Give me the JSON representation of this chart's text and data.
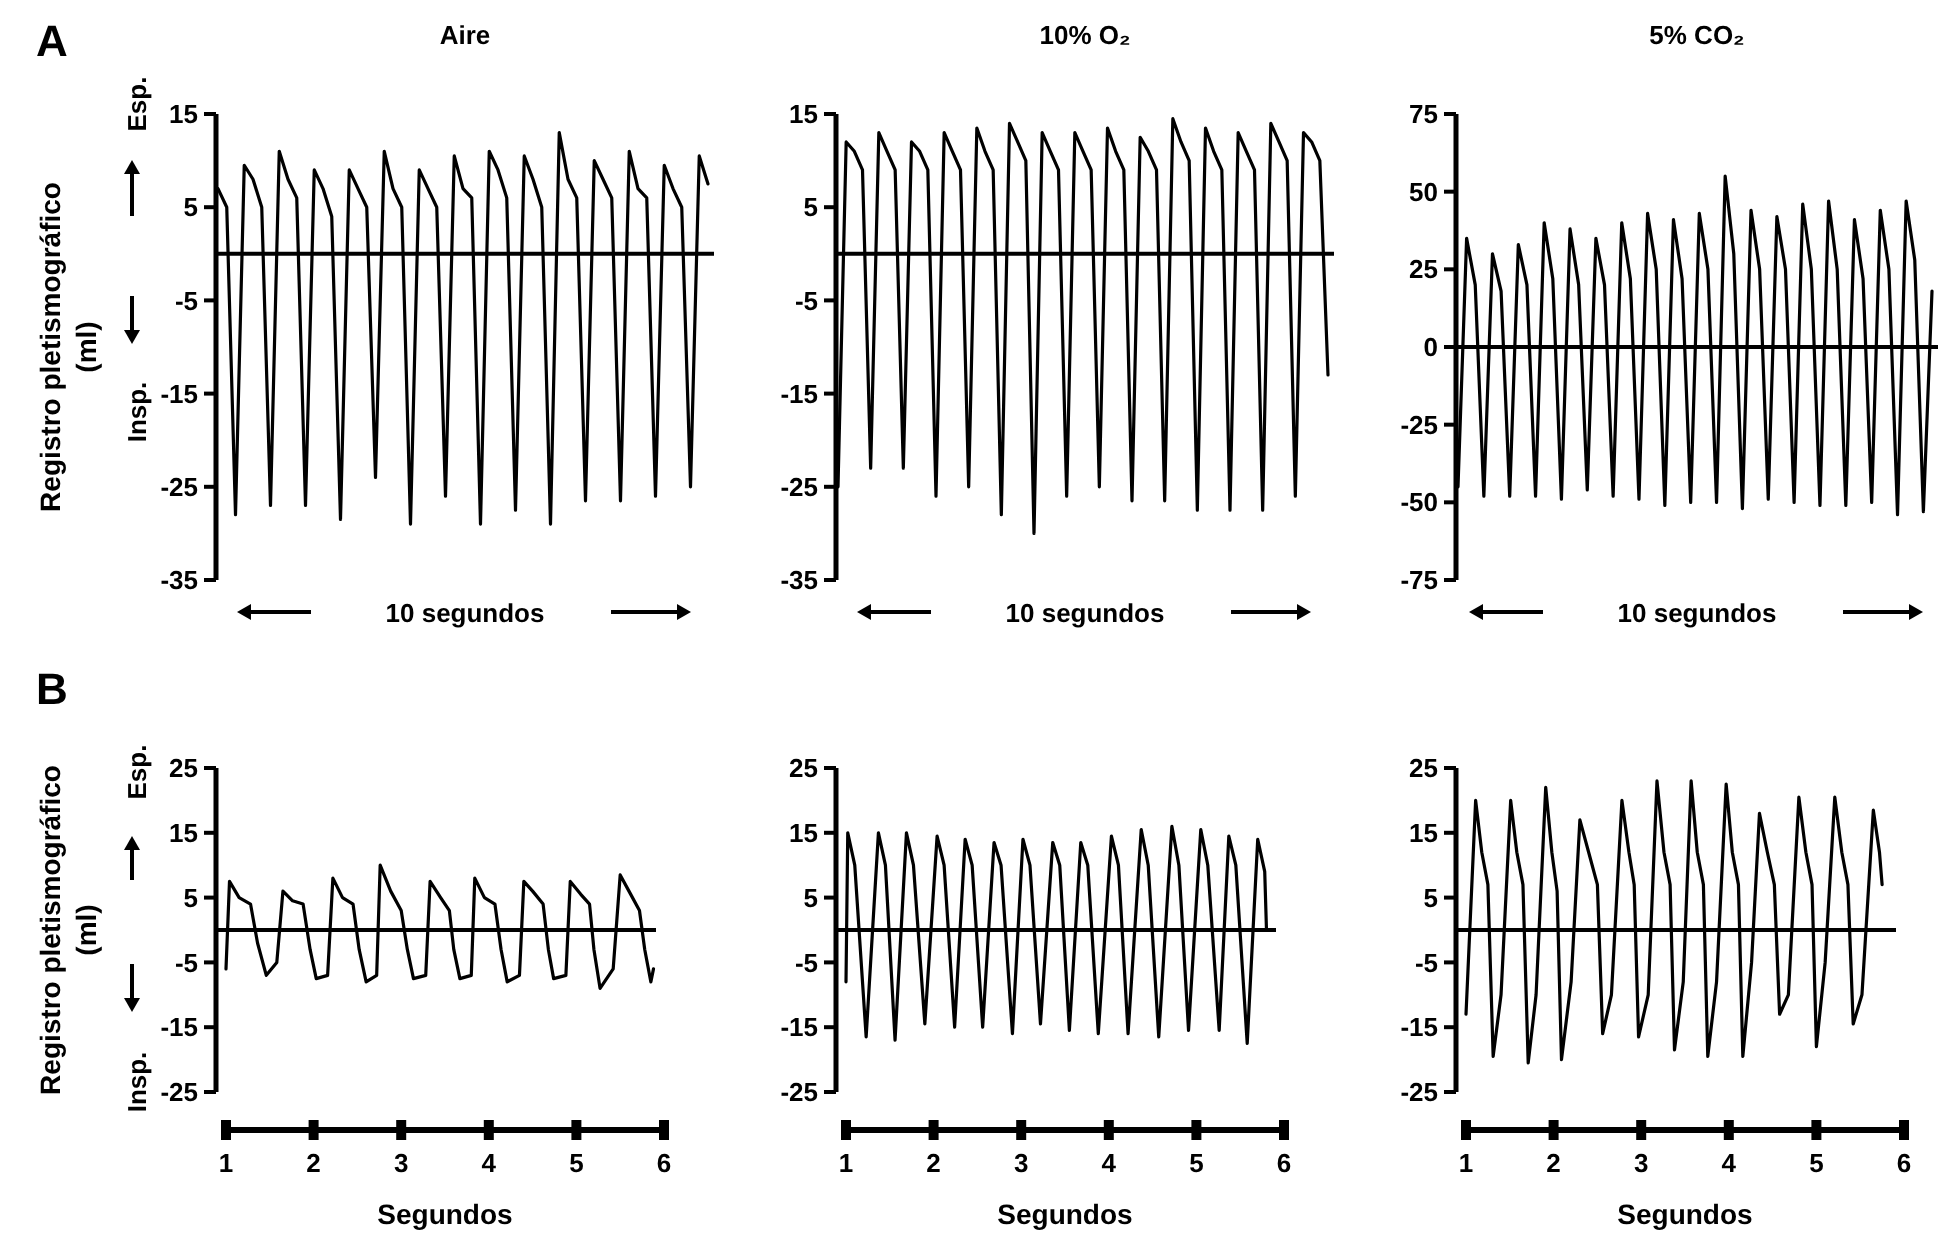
{
  "chart_data": [
    {
      "type": "line",
      "title": "Aire",
      "ylabel": "Registro pletismográfico (ml)",
      "annotations": [
        "A",
        "Esp.",
        "Insp.",
        "10 segundos"
      ],
      "tick_labels": "y",
      "color": "#000000",
      "ylim": [
        -35,
        15
      ],
      "yticks": [
        15,
        5,
        -5,
        -15,
        -25,
        -35
      ],
      "ref_lines": [
        {
          "axis": "y",
          "value": 0,
          "color": "#000000"
        }
      ],
      "categories": [
        null,
        null,
        null,
        null,
        null,
        null,
        null,
        null,
        null,
        null,
        null,
        null,
        null,
        null,
        null,
        null,
        null,
        null,
        null,
        null,
        null,
        null,
        null,
        null,
        null,
        null,
        null,
        null,
        null,
        null,
        null,
        null,
        null,
        null,
        null,
        null,
        null,
        null,
        null,
        null,
        null,
        null,
        null,
        null,
        null,
        null,
        null,
        null,
        null,
        null,
        null,
        null,
        null,
        null,
        null,
        null,
        null
      ],
      "values": [
        7,
        5,
        -28,
        9.5,
        8,
        5,
        -27,
        11,
        8,
        6,
        -27,
        9,
        7,
        4,
        -28.5,
        9,
        7,
        5,
        -24,
        11,
        7,
        5,
        -29,
        9,
        7,
        5,
        -26,
        10.5,
        7,
        6,
        -29,
        11,
        9,
        6,
        -27.5,
        10.5,
        8,
        5,
        -29,
        13,
        8,
        6,
        -26.5,
        10,
        8,
        6,
        -26.5,
        11,
        7,
        6,
        -26,
        9.5,
        7,
        5,
        -25,
        10.5,
        7.5
      ]
    },
    {
      "type": "line",
      "title": "10% O₂",
      "annotations": [
        "10 segundos"
      ],
      "tick_labels": "y",
      "color": "#000000",
      "ylim": [
        -35,
        15
      ],
      "yticks": [
        15,
        5,
        -5,
        -15,
        -25,
        -35
      ],
      "ref_lines": [
        {
          "axis": "y",
          "value": 0,
          "color": "#000000"
        }
      ],
      "categories": [
        null,
        null,
        null,
        null,
        null,
        null,
        null,
        null,
        null,
        null,
        null,
        null,
        null,
        null,
        null,
        null,
        null,
        null,
        null,
        null,
        null,
        null,
        null,
        null,
        null,
        null,
        null,
        null,
        null,
        null,
        null,
        null,
        null,
        null,
        null,
        null,
        null,
        null,
        null,
        null,
        null,
        null,
        null,
        null,
        null,
        null,
        null,
        null,
        null,
        null,
        null,
        null,
        null,
        null,
        null,
        null,
        null,
        null,
        null,
        null,
        null
      ],
      "values": [
        -25,
        12,
        11,
        9,
        -23,
        13,
        11,
        9,
        -23,
        12,
        11,
        9,
        -26,
        13,
        11,
        9,
        -25,
        13.5,
        11,
        9,
        -28,
        14,
        12,
        10,
        -30,
        13,
        11,
        9,
        -26,
        13,
        11,
        9,
        -25,
        13.5,
        11,
        9,
        -26.5,
        12.5,
        11,
        9,
        -26.5,
        14.5,
        12,
        10,
        -27.5,
        13.5,
        11,
        9,
        -27.5,
        13,
        11,
        9,
        -27.5,
        14,
        12,
        10,
        -26,
        13,
        12,
        10,
        -13
      ]
    },
    {
      "type": "line",
      "title": "5% CO₂",
      "annotations": [
        "10 segundos"
      ],
      "tick_labels": "y",
      "color": "#000000",
      "ylim": [
        -75,
        75
      ],
      "yticks": [
        75,
        50,
        25,
        0,
        -25,
        -50,
        -75
      ],
      "ref_lines": [
        {
          "axis": "y",
          "value": 0,
          "color": "#000000"
        }
      ],
      "categories": [
        null,
        null,
        null,
        null,
        null,
        null,
        null,
        null,
        null,
        null,
        null,
        null,
        null,
        null,
        null,
        null,
        null,
        null,
        null,
        null,
        null,
        null,
        null,
        null,
        null,
        null,
        null,
        null,
        null,
        null,
        null,
        null,
        null,
        null,
        null,
        null,
        null,
        null,
        null,
        null,
        null,
        null,
        null,
        null,
        null,
        null,
        null,
        null,
        null,
        null,
        null,
        null,
        null,
        null,
        null,
        null
      ],
      "values": [
        -45,
        35,
        20,
        -48,
        30,
        18,
        -48,
        33,
        20,
        -48,
        40,
        22,
        -49,
        38,
        20,
        -46,
        35,
        20,
        -48,
        40,
        22,
        -49,
        43,
        25,
        -51,
        41,
        22,
        -50,
        43,
        25,
        -50,
        55,
        30,
        -52,
        44,
        25,
        -49,
        42,
        25,
        -50,
        46,
        25,
        -51,
        47,
        25,
        -51,
        41,
        22,
        -50,
        44,
        25,
        -54,
        47,
        28,
        -53,
        18
      ]
    },
    {
      "type": "line",
      "ylabel": "Registro pletismográfico (ml)",
      "xlabel": "Segundos",
      "annotations": [
        "B",
        "Esp.",
        "Insp."
      ],
      "color": "#000000",
      "xlim": [
        1,
        6
      ],
      "xticks": [
        1,
        2,
        3,
        4,
        5,
        6
      ],
      "ylim": [
        -25,
        25
      ],
      "yticks": [
        25,
        15,
        5,
        -5,
        -15,
        -25
      ],
      "ref_lines": [
        {
          "axis": "y",
          "value": 0,
          "color": "#000000"
        }
      ],
      "x": [
        1.0,
        1.04,
        1.15,
        1.28,
        1.36,
        1.46,
        1.58,
        1.65,
        1.76,
        1.88,
        1.96,
        2.03,
        2.16,
        2.22,
        2.33,
        2.45,
        2.52,
        2.6,
        2.72,
        2.76,
        2.88,
        3.0,
        3.07,
        3.14,
        3.28,
        3.33,
        3.45,
        3.55,
        3.6,
        3.67,
        3.8,
        3.84,
        3.95,
        4.07,
        4.14,
        4.21,
        4.35,
        4.4,
        4.5,
        4.62,
        4.68,
        4.74,
        4.88,
        4.93,
        5.05,
        5.15,
        5.2,
        5.27,
        5.42,
        5.5,
        5.6,
        5.72,
        5.78,
        5.85,
        5.88
      ],
      "values": [
        -6,
        7.5,
        5,
        4,
        -2,
        -7,
        -5,
        6,
        4.5,
        4,
        -3,
        -7.5,
        -7,
        8,
        5,
        4,
        -3,
        -8,
        -7,
        10,
        6,
        3,
        -3,
        -7.5,
        -7,
        7.5,
        5,
        3,
        -3,
        -7.5,
        -7,
        8,
        5,
        4,
        -3,
        -8,
        -7,
        7.5,
        6,
        4,
        -3,
        -7.5,
        -7,
        7.5,
        5.5,
        4,
        -3,
        -9,
        -6,
        8.5,
        6,
        3,
        -3,
        -8,
        -6
      ]
    },
    {
      "type": "line",
      "xlabel": "Segundos",
      "color": "#000000",
      "xlim": [
        1,
        6
      ],
      "xticks": [
        1,
        2,
        3,
        4,
        5,
        6
      ],
      "ylim": [
        -25,
        25
      ],
      "yticks": [
        25,
        15,
        5,
        -5,
        -15,
        -25
      ],
      "ref_lines": [
        {
          "axis": "y",
          "value": 0,
          "color": "#000000"
        }
      ],
      "x": [
        1.0,
        1.02,
        1.1,
        1.23,
        1.37,
        1.45,
        1.56,
        1.69,
        1.77,
        1.9,
        2.04,
        2.12,
        2.24,
        2.36,
        2.44,
        2.56,
        2.69,
        2.77,
        2.9,
        3.02,
        3.1,
        3.22,
        3.36,
        3.44,
        3.55,
        3.68,
        3.76,
        3.88,
        4.03,
        4.11,
        4.22,
        4.37,
        4.45,
        4.57,
        4.72,
        4.8,
        4.91,
        5.05,
        5.13,
        5.26,
        5.37,
        5.45,
        5.58,
        5.7,
        5.78,
        5.8
      ],
      "values": [
        -8,
        15,
        10,
        -16.5,
        15,
        10,
        -17,
        15,
        10,
        -14.5,
        14.5,
        10,
        -15,
        14,
        10,
        -15,
        13.5,
        10,
        -16,
        14,
        10,
        -14.5,
        13.5,
        10,
        -15.5,
        13.5,
        10,
        -16,
        14.5,
        10,
        -16,
        15.5,
        10,
        -16.5,
        16,
        10,
        -15.5,
        15.5,
        10,
        -15.5,
        14.5,
        10,
        -17.5,
        14,
        9,
        0
      ]
    },
    {
      "type": "line",
      "xlabel": "Segundos",
      "color": "#000000",
      "xlim": [
        1,
        6
      ],
      "xticks": [
        1,
        2,
        3,
        4,
        5,
        6
      ],
      "ylim": [
        -25,
        25
      ],
      "yticks": [
        25,
        15,
        5,
        -5,
        -15,
        -25
      ],
      "ref_lines": [
        {
          "axis": "y",
          "value": 0,
          "color": "#000000"
        }
      ],
      "x": [
        1.0,
        1.11,
        1.18,
        1.25,
        1.31,
        1.4,
        1.51,
        1.58,
        1.65,
        1.71,
        1.8,
        1.91,
        1.98,
        2.04,
        2.09,
        2.2,
        2.3,
        2.4,
        2.5,
        2.56,
        2.66,
        2.78,
        2.86,
        2.92,
        2.97,
        3.08,
        3.18,
        3.26,
        3.33,
        3.38,
        3.48,
        3.57,
        3.64,
        3.71,
        3.76,
        3.86,
        3.97,
        4.04,
        4.11,
        4.16,
        4.26,
        4.35,
        4.44,
        4.52,
        4.58,
        4.68,
        4.8,
        4.88,
        4.95,
        5.0,
        5.1,
        5.21,
        5.29,
        5.36,
        5.42,
        5.52,
        5.65,
        5.72,
        5.75
      ],
      "values": [
        -13,
        20,
        12,
        7,
        -19.5,
        -10,
        20,
        12,
        7,
        -20.5,
        -10,
        22,
        12,
        6,
        -20,
        -8,
        17,
        12,
        7,
        -16,
        -10,
        20,
        12,
        7,
        -16.5,
        -10,
        23,
        12,
        7,
        -18.5,
        -8,
        23,
        12,
        7,
        -19.5,
        -8,
        22.5,
        12,
        7,
        -19.5,
        -5,
        18,
        12,
        7,
        -13,
        -10,
        20.5,
        12,
        7,
        -18,
        -5,
        20.5,
        12,
        7,
        -14.5,
        -10,
        18.5,
        12,
        7
      ]
    }
  ]
}
